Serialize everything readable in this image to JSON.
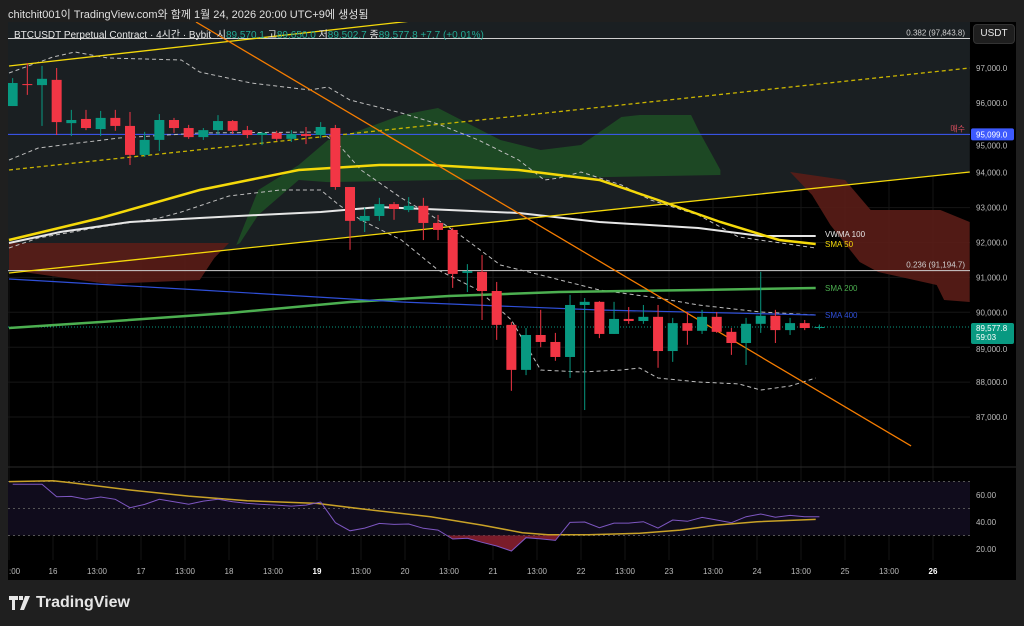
{
  "caption": "chitchit001이 TradingView.com와 함께 1월 24, 2026 20:00 UTC+9에 생성됨",
  "legend": {
    "symbol": "BTCUSDT Perpetual Contract · 4시간 · Bybit",
    "o_label": "시",
    "o": "89,570.1",
    "h_label": "고",
    "h": "89,650.0",
    "l_label": "저",
    "l": "89,502.7",
    "c_label": "종",
    "c": "89,577.8",
    "change": "+7.7 (+0.01%)"
  },
  "currency_button": "USDT",
  "logo_text": "TradingView",
  "colors": {
    "up": "#089981",
    "down": "#f23645",
    "sma50": "#f5d90a",
    "vwma100": "#e6e6e6",
    "sma200": "#4caf50",
    "sma400": "#2f4fd8",
    "bb": "#bdbdbd",
    "trend": "#f5d90a",
    "orange": "#f57c00",
    "rsi": "#7e57c2",
    "rsi_ma": "#c9a227",
    "cloud_green": "#1e4d25",
    "cloud_red": "#5a1d17",
    "buy_line": "#3d5afe",
    "price_badge": "#089981"
  },
  "chart_data": {
    "type": "candlestick",
    "interval": "4시간",
    "first_bar": "15 13:00",
    "interval_hours": 4,
    "ylim": [
      86000,
      98400
    ],
    "price_ticks": [
      "97,000.0",
      "96,000.0",
      "95,000.0",
      "94,000.0",
      "93,000.0",
      "92,000.0",
      "91,000.0",
      "90,000.0",
      "89,000.0",
      "88,000.0",
      "87,000.0"
    ],
    "price_tick_values": [
      97000,
      96000,
      95000,
      94000,
      93000,
      92000,
      91000,
      90000,
      89000,
      88000,
      87000
    ],
    "time_ticks": [
      ":00",
      "16",
      "13:00",
      "17",
      "13:00",
      "18",
      "13:00",
      "19",
      "13:00",
      "20",
      "13:00",
      "21",
      "13:00",
      "22",
      "13:00",
      "23",
      "13:00",
      "24",
      "13:00",
      "25",
      "13:00",
      "26"
    ],
    "candles": [
      [
        95910,
        96710,
        95910,
        96570
      ],
      [
        96540,
        97140,
        96230,
        96510
      ],
      [
        96510,
        97060,
        95340,
        96690
      ],
      [
        96660,
        97000,
        95080,
        95450
      ],
      [
        95420,
        95800,
        95050,
        95510
      ],
      [
        95540,
        95800,
        95220,
        95280
      ],
      [
        95250,
        95770,
        95050,
        95570
      ],
      [
        95570,
        95800,
        95200,
        95340
      ],
      [
        95340,
        95740,
        94220,
        94510
      ],
      [
        94510,
        95170,
        94450,
        94940
      ],
      [
        94940,
        95680,
        94620,
        95510
      ],
      [
        95510,
        95570,
        95140,
        95280
      ],
      [
        95280,
        95370,
        94970,
        95020
      ],
      [
        95020,
        95280,
        94940,
        95220
      ],
      [
        95220,
        95650,
        95080,
        95480
      ],
      [
        95480,
        95510,
        95110,
        95200
      ],
      [
        95220,
        95340,
        94990,
        95080
      ],
      [
        95080,
        95170,
        94790,
        95140
      ],
      [
        95140,
        95200,
        94910,
        94970
      ],
      [
        94970,
        95220,
        94880,
        95110
      ],
      [
        95110,
        95310,
        94820,
        95050
      ],
      [
        95080,
        95450,
        94990,
        95310
      ],
      [
        95280,
        95370,
        93510,
        93590
      ],
      [
        93590,
        93590,
        91790,
        92620
      ],
      [
        92620,
        93000,
        92300,
        92760
      ],
      [
        92760,
        93280,
        92620,
        93100
      ],
      [
        93100,
        93160,
        92650,
        92960
      ],
      [
        92930,
        93300,
        92870,
        93050
      ],
      [
        93050,
        93280,
        92070,
        92560
      ],
      [
        92560,
        92790,
        92070,
        92360
      ],
      [
        92360,
        92420,
        90700,
        91100
      ],
      [
        91130,
        91380,
        90580,
        91180
      ],
      [
        91160,
        91640,
        89780,
        90610
      ],
      [
        90610,
        90870,
        89210,
        89640
      ],
      [
        89640,
        89720,
        87750,
        88350
      ],
      [
        88350,
        89550,
        88200,
        89350
      ],
      [
        89350,
        90070,
        89000,
        89150
      ],
      [
        89150,
        89410,
        88610,
        88720
      ],
      [
        88720,
        90500,
        88120,
        90210
      ],
      [
        90210,
        90410,
        87200,
        90300
      ],
      [
        90300,
        90320,
        89260,
        89380
      ],
      [
        89380,
        90300,
        89380,
        89810
      ],
      [
        89810,
        90150,
        89670,
        89750
      ],
      [
        89750,
        90210,
        89670,
        89870
      ],
      [
        89870,
        90210,
        88410,
        88890
      ],
      [
        88890,
        89840,
        88580,
        89690
      ],
      [
        89690,
        90010,
        89070,
        89470
      ],
      [
        89470,
        90070,
        89380,
        89870
      ],
      [
        89870,
        90010,
        89410,
        89440
      ],
      [
        89440,
        89550,
        88780,
        89120
      ],
      [
        89120,
        89840,
        88490,
        89670
      ],
      [
        89670,
        91160,
        89410,
        89900
      ],
      [
        89900,
        90070,
        89120,
        89490
      ],
      [
        89490,
        89840,
        89350,
        89690
      ],
      [
        89690,
        89780,
        89490,
        89550
      ],
      [
        89570.1,
        89650.0,
        89502.7,
        89577.8
      ]
    ],
    "last_price": "89,577.8",
    "last_price_value": 89577.8,
    "countdown": "59:03",
    "horizontal_lines": [
      {
        "label": "0.382 (97,843.8)",
        "value": 97843.8,
        "color": "#cfcfcf"
      },
      {
        "label": "0.236 (91,194.7)",
        "value": 91194.7,
        "color": "#cfcfcf"
      },
      {
        "label": "매수",
        "value": 95099.0,
        "badge": "95,099.0",
        "color": "#3d5afe"
      }
    ],
    "indicators": [
      {
        "name": "VWMA 100",
        "color": "#e6e6e6",
        "width": 2,
        "points": [
          [
            "15 12:00",
            91986
          ],
          [
            "16 02:00",
            92301
          ],
          [
            "16 21:00",
            92588
          ],
          [
            "17 16:00",
            92703
          ],
          [
            "18 08:00",
            92788
          ],
          [
            "19 01:00",
            92874
          ],
          [
            "19 17:00",
            93018
          ],
          [
            "20 12:00",
            92932
          ],
          [
            "21 07:00",
            92846
          ],
          [
            "22 05:00",
            92588
          ],
          [
            "23 08:00",
            92416
          ],
          [
            "24 01:00",
            92187
          ],
          [
            "24 16:00",
            92187
          ]
        ]
      },
      {
        "name": "SMA 50",
        "color": "#f5d90a",
        "width": 2.5,
        "points": [
          [
            "15 12:00",
            92072
          ],
          [
            "16 13:00",
            92703
          ],
          [
            "17 16:00",
            93505
          ],
          [
            "18 19:00",
            94078
          ],
          [
            "19 17:00",
            94221
          ],
          [
            "20 07:00",
            94221
          ],
          [
            "21 07:00",
            94078
          ],
          [
            "22 05:00",
            93791
          ],
          [
            "22 21:00",
            93218
          ],
          [
            "23 14:00",
            92588
          ],
          [
            "24 06:00",
            92072
          ],
          [
            "24 16:00",
            91958
          ]
        ]
      },
      {
        "name": "SMA 200",
        "color": "#4caf50",
        "width": 2.5,
        "points": [
          [
            "15 12:00",
            89551
          ],
          [
            "16 13:00",
            89723
          ],
          [
            "18 00:00",
            89980
          ],
          [
            "19 09:00",
            90296
          ],
          [
            "20 12:00",
            90468
          ],
          [
            "21 18:00",
            90582
          ],
          [
            "23 08:00",
            90640
          ],
          [
            "24 16:00",
            90697
          ]
        ]
      },
      {
        "name": "SMA 400",
        "color": "#2f4fd8",
        "width": 1.2,
        "points": [
          [
            "15 12:00",
            90955
          ],
          [
            "17 16:00",
            90640
          ],
          [
            "19 23:00",
            90296
          ],
          [
            "22 05:00",
            90067
          ],
          [
            "24 16:00",
            89923
          ]
        ]
      }
    ],
    "bollinger": {
      "color": "#bdbdbd",
      "upper": [
        [
          "15 12:00",
          96857
        ],
        [
          "16 00:00",
          97315
        ],
        [
          "16 06:00",
          97458
        ],
        [
          "16 15:00",
          97287
        ],
        [
          "17 11:00",
          97229
        ],
        [
          "17 16:00",
          96885
        ],
        [
          "18 06:00",
          96570
        ],
        [
          "18 22:00",
          96370
        ],
        [
          "19 03:00",
          96456
        ],
        [
          "19 09:00",
          96083
        ],
        [
          "19 23:00",
          95711
        ],
        [
          "20 09:00",
          95396
        ],
        [
          "20 20:00",
          94937
        ],
        [
          "21 07:00",
          94364
        ],
        [
          "21 14:00",
          93791
        ],
        [
          "21 18:00",
          93849
        ],
        [
          "22 00:00",
          94020
        ],
        [
          "22 11:00",
          93648
        ],
        [
          "22 19:00",
          93218
        ],
        [
          "23 08:00",
          92788
        ],
        [
          "23 19:00",
          92158
        ],
        [
          "24 16:00",
          91843
        ]
      ],
      "middle": [
        [
          "15 12:00",
          94364
        ],
        [
          "15 20:00",
          94708
        ],
        [
          "16 18:00",
          94994
        ],
        [
          "17 16:00",
          95138
        ],
        [
          "19 01:00",
          95166
        ],
        [
          "19 06:00",
          94794
        ],
        [
          "19 12:00",
          94078
        ],
        [
          "19 23:00",
          93275
        ],
        [
          "20 07:00",
          92788
        ],
        [
          "20 15:00",
          92215
        ],
        [
          "21 02:00",
          91356
        ],
        [
          "21 13:00",
          91069
        ],
        [
          "22 05:00",
          90640
        ],
        [
          "22 21:00",
          90410
        ],
        [
          "23 08:00",
          90210
        ],
        [
          "24 01:00",
          90009
        ],
        [
          "24 16:00",
          89923
        ]
      ],
      "lower": [
        [
          "15 12:00",
          91843
        ],
        [
          "15 20:00",
          92129
        ],
        [
          "16 13:00",
          92445
        ],
        [
          "17 05:00",
          92703
        ],
        [
          "17 11:00",
          92874
        ],
        [
          "18 00:00",
          93333
        ],
        [
          "18 14:00",
          93505
        ],
        [
          "19 01:00",
          93505
        ],
        [
          "19 06:00",
          93075
        ],
        [
          "19 12:00",
          92645
        ],
        [
          "19 23:00",
          92072
        ],
        [
          "20 09:00",
          91213
        ],
        [
          "20 20:00",
          90640
        ],
        [
          "21 05:00",
          89780
        ],
        [
          "21 13:00",
          88348
        ],
        [
          "22 00:00",
          88290
        ],
        [
          "22 11:00",
          88348
        ],
        [
          "22 16:00",
          88405
        ],
        [
          "22 21:00",
          88118
        ],
        [
          "23 08:00",
          88004
        ],
        [
          "23 19:00",
          87947
        ],
        [
          "24 01:00",
          87775
        ],
        [
          "24 09:00",
          87889
        ],
        [
          "24 16:00",
          88118
        ]
      ]
    },
    "clouds": [
      {
        "color": "#1e4d25",
        "points": [
          [
            "18 02:00",
            91929
          ],
          [
            "18 08:00",
            93505
          ],
          [
            "18 19:00",
            94221
          ],
          [
            "19 03:00",
            94937
          ],
          [
            "19 12:00",
            95224
          ],
          [
            "19 23:00",
            95653
          ],
          [
            "20 09:00",
            95854
          ],
          [
            "20 18:00",
            95367
          ],
          [
            "21 02:00",
            94937
          ],
          [
            "21 13:00",
            94651
          ],
          [
            "22 00:00",
            94794
          ],
          [
            "22 11:00",
            95596
          ],
          [
            "22 16:00",
            95653
          ],
          [
            "23 06:00",
            95653
          ],
          [
            "23 08:00",
            95224
          ],
          [
            "23 14:00",
            94078
          ],
          [
            "23 14:00",
            93934
          ],
          [
            "19 03:00",
            93730
          ],
          [
            "18 19:00",
            93791
          ],
          [
            "18 08:00",
            92788
          ],
          [
            "18 03:00",
            91986
          ]
        ]
      },
      {
        "color": "#5a1d17",
        "points": [
          [
            "15 12:00",
            91986
          ],
          [
            "18 00:00",
            91986
          ],
          [
            "17 20:00",
            91557
          ],
          [
            "17 16:00",
            90926
          ],
          [
            "16 15:00",
            90812
          ],
          [
            "15 12:00",
            91213
          ]
        ]
      },
      {
        "color": "#5a1d17",
        "points": [
          [
            "24 09:00",
            94020
          ],
          [
            "25 00:00",
            93791
          ],
          [
            "25 07:00",
            92932
          ],
          [
            "26 02:00",
            92932
          ],
          [
            "26 10:00",
            92588
          ],
          [
            "26 10:00",
            90296
          ],
          [
            "26 03:00",
            90353
          ],
          [
            "26 01:00",
            90783
          ],
          [
            "25 09:00",
            91155
          ],
          [
            "25 04:00",
            91442
          ],
          [
            "24 20:00",
            92502
          ],
          [
            "24 15:00",
            93362
          ]
        ]
      }
    ],
    "trendlines": [
      {
        "color": "#f5d90a",
        "dash": false,
        "from": [
          "15 12:00",
          97057
        ],
        "to": [
          "20 09:00",
          98433
        ]
      },
      {
        "color": "#f5d90a",
        "dash": false,
        "from": [
          "15 12:00",
          91127
        ],
        "to": [
          "26 10:00",
          94020
        ]
      },
      {
        "color": "#c9b400",
        "dash": true,
        "from": [
          "15 12:00",
          94078
        ],
        "to": [
          "26 10:00",
          97000
        ]
      },
      {
        "color": "#f57c00",
        "dash": false,
        "from": [
          "17 15:00",
          98318
        ],
        "to": [
          "25 18:00",
          86170
        ]
      }
    ],
    "rsi": {
      "ticks": [
        "60.00",
        "40.00",
        "20.00"
      ],
      "tick_values": [
        60,
        40,
        20
      ],
      "levels": [
        70,
        50,
        30
      ],
      "values": [
        68,
        68,
        68,
        58.7,
        59,
        56.8,
        58.5,
        56.8,
        50.6,
        53,
        56.8,
        55,
        53.1,
        55.5,
        56.8,
        55,
        53.8,
        53,
        52.5,
        51.8,
        52.5,
        54.8,
        39.5,
        33.5,
        35.5,
        39,
        38.2,
        38.5,
        35.3,
        34,
        27.4,
        27.9,
        25,
        22.2,
        18.5,
        28.4,
        27.5,
        26.4,
        39.7,
        40,
        35.8,
        39.2,
        39.2,
        40.2,
        35.5,
        41.5,
        40.5,
        43.4,
        41.5,
        39.5,
        43.9,
        45.9,
        43.5,
        44.9,
        43.9,
        43.9
      ],
      "ma": [
        [
          "15 12:00",
          69.9
        ],
        [
          "16 00:00",
          70.6
        ],
        [
          "16 05:00",
          69.1
        ],
        [
          "16 21:00",
          63.7
        ],
        [
          "17 13:00",
          59.2
        ],
        [
          "18 05:00",
          55.8
        ],
        [
          "19 00:00",
          53.8
        ],
        [
          "19 13:00",
          49.4
        ],
        [
          "20 07:00",
          43.9
        ],
        [
          "20 21:00",
          37.7
        ],
        [
          "21 08:00",
          32.1
        ],
        [
          "21 15:00",
          30.6
        ],
        [
          "22 02:00",
          30.6
        ],
        [
          "22 16:00",
          31.6
        ],
        [
          "23 03:00",
          34
        ],
        [
          "23 13:00",
          37.7
        ],
        [
          "24 00:00",
          40.2
        ],
        [
          "24 16:00",
          41.9
        ]
      ]
    }
  }
}
